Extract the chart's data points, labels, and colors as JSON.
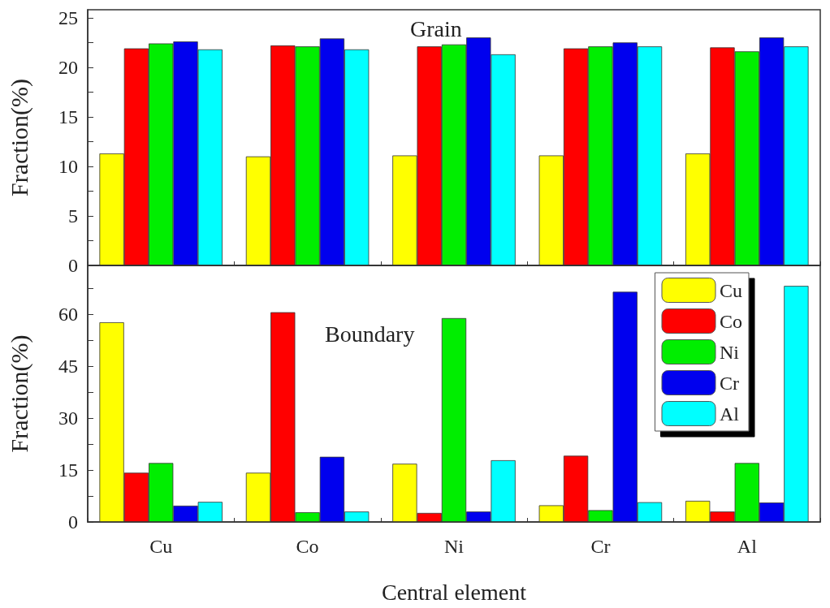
{
  "chart_data": [
    {
      "type": "bar",
      "title": "Grain",
      "ylabel": "Fraction(%)",
      "categories": [
        null,
        null,
        null,
        null,
        null
      ],
      "tick_labels": "y",
      "legend": false,
      "ylim": [
        0,
        25.8
      ],
      "yticks": [
        0,
        {
          "value": 2.5,
          "label": null
        },
        5,
        {
          "value": 7.5,
          "label": null
        },
        10,
        {
          "value": 12.5,
          "label": null
        },
        15,
        {
          "value": 17.5,
          "label": null
        },
        20,
        {
          "value": 22.5,
          "label": null
        },
        25
      ],
      "series": [
        {
          "color": "#ffff00",
          "values": [
            11.3,
            11.0,
            11.1,
            11.1,
            11.3
          ]
        },
        {
          "color": "#ff0000",
          "values": [
            21.9,
            22.2,
            22.1,
            21.9,
            22.0
          ]
        },
        {
          "color": "#00ee00",
          "values": [
            22.4,
            22.1,
            22.3,
            22.1,
            21.6
          ]
        },
        {
          "color": "#0000ee",
          "values": [
            22.6,
            22.9,
            23.0,
            22.5,
            23.0
          ]
        },
        {
          "color": "#00ffff",
          "values": [
            21.8,
            21.8,
            21.3,
            22.1,
            22.1
          ]
        }
      ]
    },
    {
      "type": "bar",
      "title": "Boundary",
      "ylabel": "Fraction(%)",
      "xlabel": "Central element",
      "categories": [
        "Cu",
        "Co",
        "Ni",
        "Cr",
        "Al"
      ],
      "legend": "top right",
      "ylim": [
        0,
        74
      ],
      "yticks": [
        0,
        {
          "value": 7.5,
          "label": null
        },
        15,
        {
          "value": 22.5,
          "label": null
        },
        30,
        {
          "value": 37.5,
          "label": null
        },
        45,
        {
          "value": 52.5,
          "label": null
        },
        60,
        {
          "value": 67.5,
          "label": null
        }
      ],
      "series": [
        {
          "name": "Cu",
          "color": "#ffff00",
          "values": [
            57.6,
            14.2,
            16.8,
            4.8,
            6.1
          ]
        },
        {
          "name": "Co",
          "color": "#ff0000",
          "values": [
            14.2,
            60.5,
            2.6,
            19.1,
            3.0
          ]
        },
        {
          "name": "Ni",
          "color": "#00ee00",
          "values": [
            17.0,
            2.8,
            58.8,
            3.4,
            17.0
          ]
        },
        {
          "name": "Cr",
          "color": "#0000ee",
          "values": [
            4.7,
            18.8,
            3.0,
            66.4,
            5.6
          ]
        },
        {
          "name": "Al",
          "color": "#00ffff",
          "values": [
            5.8,
            3.0,
            17.8,
            5.7,
            68.1
          ]
        }
      ]
    }
  ]
}
